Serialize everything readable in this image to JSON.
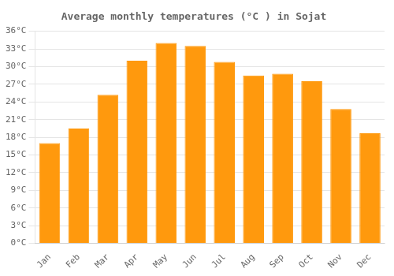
{
  "chart_data": {
    "type": "bar",
    "title": "Average monthly temperatures (°C ) in Sojat",
    "categories": [
      "Jan",
      "Feb",
      "Mar",
      "Apr",
      "May",
      "Jun",
      "Jul",
      "Aug",
      "Sep",
      "Oct",
      "Nov",
      "Dec"
    ],
    "values": [
      17.0,
      19.5,
      25.2,
      31.0,
      34.0,
      33.5,
      30.8,
      28.5,
      28.8,
      27.5,
      22.8,
      18.7
    ],
    "color": "#ff990d",
    "ylim": [
      0,
      36
    ],
    "yticks": [
      {
        "value": 0,
        "label": "0°C"
      },
      {
        "value": 3,
        "label": "3°C"
      },
      {
        "value": 6,
        "label": "6°C"
      },
      {
        "value": 9,
        "label": "9°C"
      },
      {
        "value": 12,
        "label": "12°C"
      },
      {
        "value": 15,
        "label": "15°C"
      },
      {
        "value": 18,
        "label": "18°C"
      },
      {
        "value": 21,
        "label": "21°C"
      },
      {
        "value": 24,
        "label": "24°C"
      },
      {
        "value": 27,
        "label": "27°C"
      },
      {
        "value": 30,
        "label": "30°C"
      },
      {
        "value": 33,
        "label": "33°C"
      },
      {
        "value": 36,
        "label": "36°C"
      }
    ],
    "grid": true
  }
}
